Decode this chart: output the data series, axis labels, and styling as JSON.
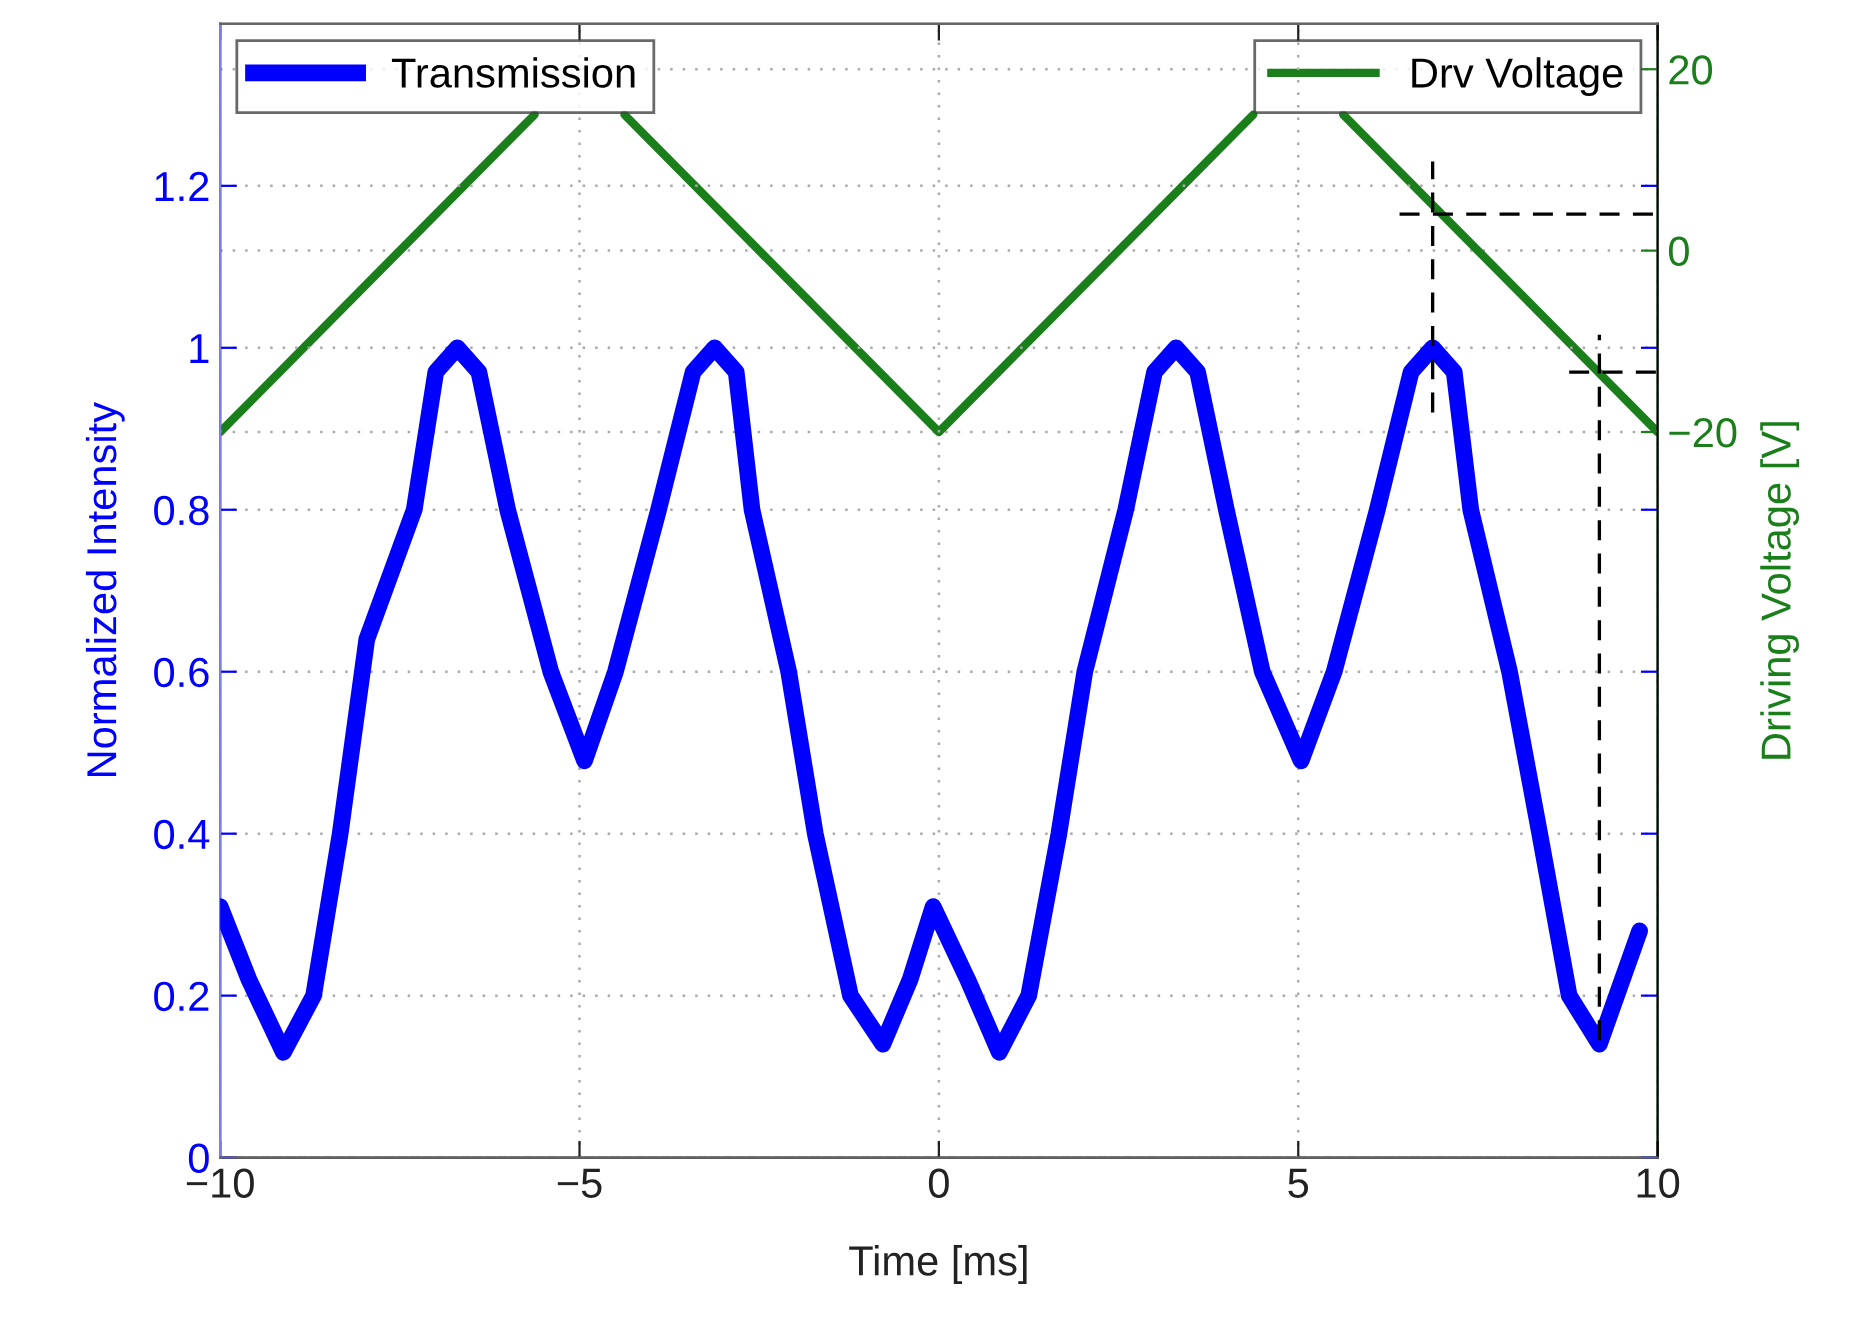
{
  "chart_data": {
    "type": "line",
    "xlabel": "Time [ms]",
    "ylabel": "Normalized Intensity",
    "y2label": "Driving Voltage [V]",
    "xlim": [
      -10,
      10
    ],
    "xticks": [
      {
        "value": -10,
        "label": "−10"
      },
      {
        "value": -5,
        "label": "−5"
      },
      0,
      5,
      10
    ],
    "ylim": [
      0,
      1.4
    ],
    "yticks": [
      0,
      0.2,
      0.4,
      0.6,
      0.8,
      1,
      1.2
    ],
    "y2lim": [
      -100,
      25
    ],
    "y2ticks": [
      {
        "value": -20,
        "label": "−20"
      },
      0,
      20
    ],
    "grid": true,
    "legend": "top",
    "line_style": "solid",
    "marker": "none",
    "series": [
      {
        "name": "Transmission",
        "color": "#0000ff",
        "x": [
          -10,
          -9.6,
          -9.12,
          -8.7,
          -8.33,
          -7.96,
          -7.3,
          -7.0,
          -6.7,
          -6.4,
          -6.0,
          -5.4,
          -4.93,
          -4.5,
          -3.9,
          -3.42,
          -3.12,
          -2.82,
          -2.6,
          -2.09,
          -1.72,
          -1.23,
          -0.78,
          -0.4,
          -0.08,
          0.4,
          0.84,
          1.25,
          1.67,
          2.03,
          2.6,
          3.0,
          3.3,
          3.6,
          4.0,
          4.5,
          5.04,
          5.5,
          6.1,
          6.57,
          6.87,
          7.17,
          7.4,
          7.94,
          8.36,
          8.77,
          9.19,
          9.75
        ],
        "values": [
          0.31,
          0.22,
          0.13,
          0.2,
          0.4,
          0.64,
          0.8,
          0.97,
          1.0,
          0.97,
          0.8,
          0.6,
          0.49,
          0.6,
          0.8,
          0.97,
          1.0,
          0.97,
          0.8,
          0.6,
          0.4,
          0.2,
          0.14,
          0.22,
          0.31,
          0.22,
          0.13,
          0.2,
          0.4,
          0.6,
          0.8,
          0.97,
          1.0,
          0.97,
          0.8,
          0.6,
          0.49,
          0.6,
          0.8,
          0.97,
          1.0,
          0.97,
          0.8,
          0.6,
          0.4,
          0.2,
          0.14,
          0.28
        ]
      },
      {
        "name": "Drv Voltage",
        "color": "#1a7f1a",
        "axis": "y2",
        "x": [
          -10,
          -5.625,
          -5,
          -4.375,
          0,
          4.375,
          5,
          5.625,
          10
        ],
        "values": [
          -20,
          15,
          null,
          15,
          -20,
          15,
          null,
          15,
          -20
        ]
      },
      {
        "color": "#000000",
        "line_style": "dashed",
        "x": [
          6.87,
          6.87
        ],
        "values": [
          0.92,
          1.23
        ]
      },
      {
        "color": "#000000",
        "line_style": "dashed",
        "x": [
          6.41,
          10
        ],
        "values": [
          1.165,
          1.165
        ]
      },
      {
        "color": "#000000",
        "line_style": "dashed",
        "x": [
          9.19,
          9.19
        ],
        "values": [
          0.145,
          1.016
        ]
      },
      {
        "color": "#000000",
        "line_style": "dashed",
        "x": [
          8.77,
          10
        ],
        "values": [
          0.97,
          0.97
        ]
      }
    ]
  }
}
